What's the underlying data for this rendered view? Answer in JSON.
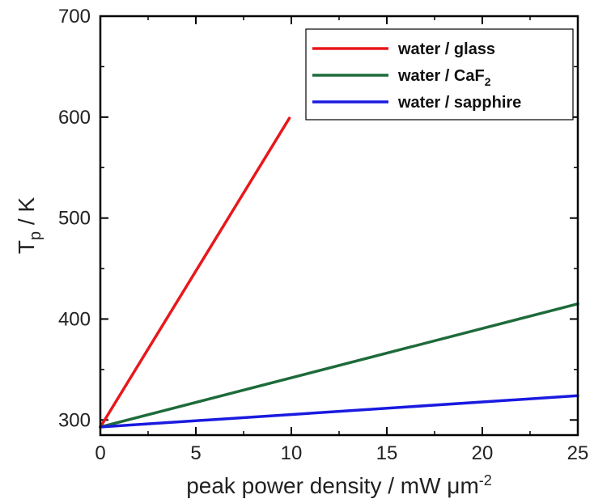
{
  "chart_data": {
    "type": "line",
    "xlabel": "peak power density / mW μm",
    "xlabel_sup": "-2",
    "ylabel": "T",
    "ylabel_sub": "p",
    "ylabel_unit": " / K",
    "xlim": [
      0,
      25
    ],
    "ylim": [
      285,
      700
    ],
    "x_ticks": [
      "0",
      "5",
      "10",
      "15",
      "20",
      "25"
    ],
    "y_ticks": [
      "300",
      "400",
      "500",
      "600",
      "700"
    ],
    "grid": false,
    "legend_position": "top-right",
    "series": [
      {
        "name": "water / glass",
        "name_sub": "",
        "color": "#e8181b",
        "x": [
          0,
          9.9
        ],
        "y": [
          293,
          599
        ]
      },
      {
        "name": "water / CaF",
        "name_sub": "2",
        "color": "#1e6b3a",
        "x": [
          0,
          25
        ],
        "y": [
          293,
          415
        ]
      },
      {
        "name": "water / sapphire",
        "name_sub": "",
        "color": "#1a1ae0",
        "x": [
          0,
          25
        ],
        "y": [
          293,
          324
        ]
      }
    ]
  }
}
